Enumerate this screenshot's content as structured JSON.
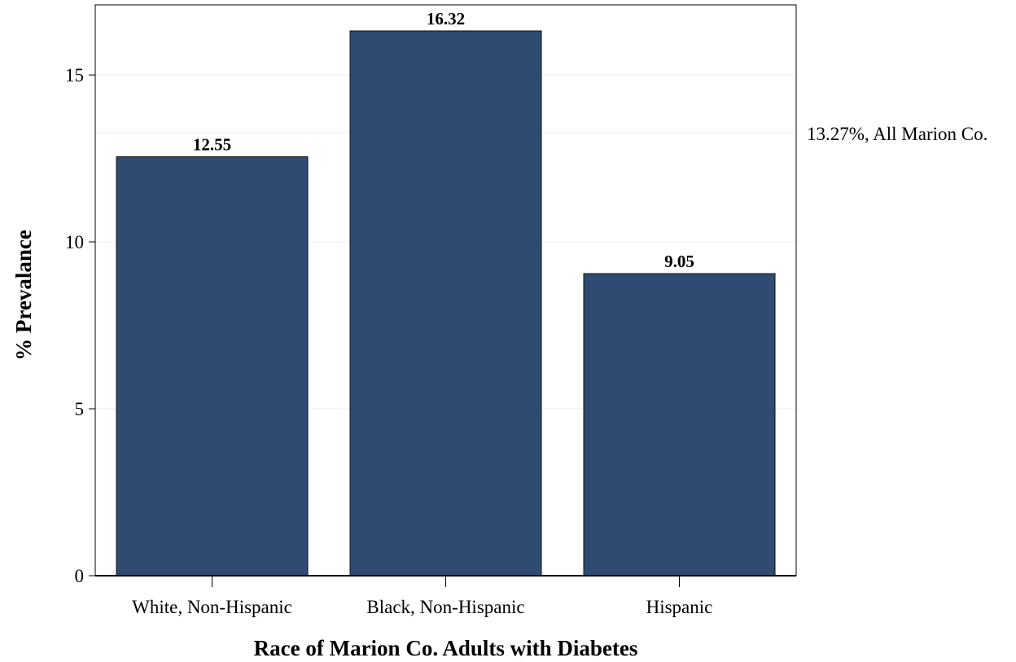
{
  "chart_data": {
    "type": "bar",
    "categories": [
      "White, Non-Hispanic",
      "Black, Non-Hispanic",
      "Hispanic"
    ],
    "values": [
      12.55,
      16.32,
      9.05
    ],
    "data_labels": [
      "12.55",
      "16.32",
      "9.05"
    ],
    "title": "",
    "xlabel": "Race of Marion Co. Adults with Diabetes",
    "ylabel": "% Prevalance",
    "ylim": [
      0,
      17.1
    ],
    "yticks": [
      0,
      5,
      10,
      15
    ],
    "ytick_labels": [
      "0",
      "5",
      "10",
      "15"
    ],
    "grid": true,
    "legend": "none",
    "bar_color": "#2f4b71",
    "reference_line": {
      "value": 13.27,
      "label": "13.27%, All Marion Co."
    }
  }
}
